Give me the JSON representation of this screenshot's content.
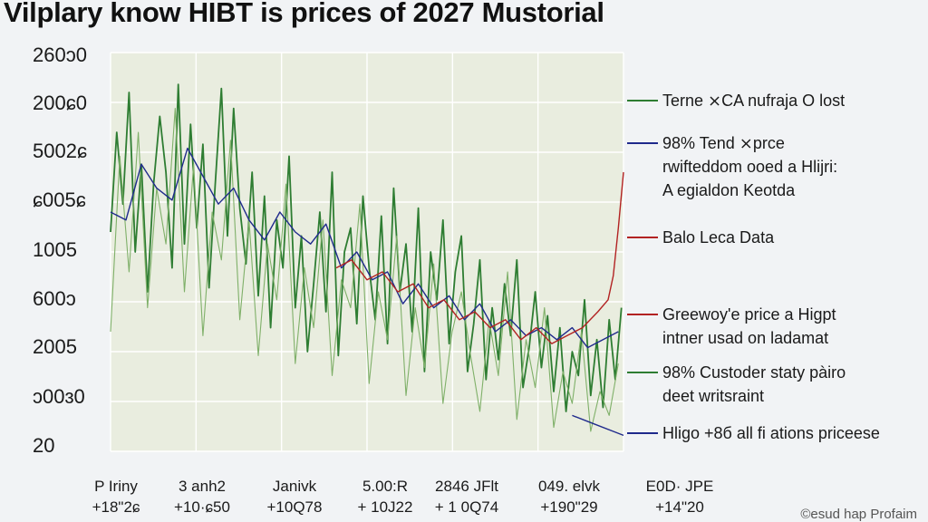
{
  "chart_data": {
    "type": "line",
    "title": "Vilplary know HIBT is prices of 2027 Mustorial",
    "watermark": "©esud hap Profaim",
    "y_ticks": [
      "260ɔ0",
      "200ɕ0",
      "5002ɕ",
      "ɕ005ɕ",
      "1005",
      "600ɔ",
      "2005",
      "ɔ00ɜ0",
      "20"
    ],
    "x_ticks": [
      {
        "line1": "P Iriny",
        "line2": "+18\"2ɕ"
      },
      {
        "line1": "3 anh2",
        "line2": "+10·ɕ50"
      },
      {
        "line1": "Janivk",
        "line2": "+10Q78"
      },
      {
        "line1": "5.00:R",
        "line2": "+ 10J22"
      },
      {
        "line1": "2846 JFlt",
        "line2": "+ 1 0Q74"
      },
      {
        "line1": "049. elvk",
        "line2": "+190\"29"
      },
      {
        "line1": "E0D· JPE",
        "line2": "+14\"20"
      }
    ],
    "ylim": [
      0,
      100
    ],
    "xlim": [
      0,
      100
    ],
    "grid": true,
    "legend_placement": "right",
    "legend": [
      {
        "lines": [
          "Terne ⨯CA nufraja O lost"
        ],
        "color": "#2e7d32"
      },
      {
        "lines": [
          "98% Tend ⨯prce",
          "rwifteddom ooed a Hlijri:",
          "A egialdon Keotda"
        ],
        "color": "#1f2a8c"
      },
      {
        "lines": [
          "Balo Leca Data"
        ],
        "color": "#b22222"
      },
      {
        "lines": [
          "Greewoy'e price a Higpt",
          "intner usad on ladamat"
        ],
        "color": "#b22222"
      },
      {
        "lines": [
          "98% Custoder staty pàiro",
          "deet writsraint"
        ],
        "color": "#2e7d32"
      },
      {
        "lines": [
          "Hligo +8б all fi ations priceese"
        ],
        "color": "#1f2a8c"
      }
    ],
    "series": [
      {
        "color": "#2e7d32",
        "x": [
          0,
          1.2,
          2.4,
          3.6,
          4.8,
          6,
          7.2,
          8.4,
          9.6,
          10.8,
          12,
          13.2,
          14.4,
          15.6,
          16.8,
          18,
          19.2,
          20.4,
          21.6,
          22.8,
          24,
          25.2,
          26.4,
          27.6,
          28.8,
          30,
          31.2,
          32.4,
          33.6,
          34.8,
          36,
          37.2,
          38.4,
          39.6,
          40.8,
          42,
          43.2,
          44.4,
          45.6,
          46.8,
          48,
          49.2,
          50.4,
          51.6,
          52.8,
          54,
          55.2,
          56.4,
          57.6,
          58.8,
          60,
          61.2,
          62.4,
          63.6,
          64.8,
          66,
          67.2,
          68.4,
          69.6,
          70.8,
          72,
          73.2,
          74.4,
          75.6,
          76.8,
          78,
          79.2,
          80.4,
          81.6,
          82.8,
          84,
          85.2,
          86.4,
          87.6,
          88.8,
          90,
          91.2,
          92.4,
          93.6,
          94.8,
          96,
          97.2,
          98.4,
          99.6
        ],
        "values": [
          55,
          80,
          62,
          90,
          50,
          72,
          40,
          67,
          84,
          70,
          46,
          92,
          52,
          82,
          56,
          77,
          41,
          67,
          91,
          54,
          86,
          61,
          47,
          70,
          39,
          64,
          31,
          58,
          46,
          74,
          36,
          54,
          25,
          42,
          60,
          35,
          70,
          24,
          50,
          56,
          32,
          64,
          46,
          33,
          59,
          27,
          66,
          40,
          52,
          30,
          61,
          20,
          50,
          38,
          58,
          27,
          45,
          54,
          20,
          32,
          48,
          18,
          36,
          23,
          42,
          29,
          48,
          16,
          26,
          40,
          21,
          34,
          15,
          31,
          10,
          25,
          19,
          38,
          14,
          28,
          11,
          33,
          18,
          36
        ]
      },
      {
        "color": "#7fb069",
        "x": [
          0,
          1.8,
          3.6,
          5.4,
          7.2,
          9,
          10.8,
          12.6,
          14.4,
          16.2,
          18,
          19.8,
          21.6,
          23.4,
          25.2,
          27,
          28.8,
          30.6,
          32.4,
          34.2,
          36,
          37.8,
          39.6,
          41.4,
          43.2,
          45,
          46.8,
          48.6,
          50.4,
          52.2,
          54,
          55.8,
          57.6,
          59.4,
          61.2,
          63,
          64.8,
          66.6,
          68.4,
          70.2,
          72,
          73.8,
          75.6,
          77.4,
          79.2,
          81,
          82.8,
          84.6,
          86.4,
          88.2,
          90,
          91.8,
          93.6,
          95.4,
          97.2,
          99
        ],
        "values": [
          30,
          74,
          45,
          80,
          36,
          66,
          52,
          86,
          40,
          72,
          29,
          60,
          48,
          78,
          33,
          58,
          24,
          52,
          38,
          67,
          22,
          46,
          31,
          58,
          19,
          43,
          36,
          62,
          17,
          40,
          28,
          54,
          14,
          36,
          21,
          47,
          12,
          30,
          40,
          24,
          10,
          33,
          19,
          45,
          8,
          28,
          16,
          36,
          6,
          20,
          12,
          30,
          5,
          15,
          9,
          22
        ]
      },
      {
        "color": "#1f2a8c",
        "x": [
          0,
          3,
          6,
          9,
          12,
          15,
          18,
          21,
          24,
          27,
          30,
          33,
          36,
          39,
          42,
          45,
          48,
          51,
          54,
          57,
          60,
          63,
          66,
          69,
          72,
          75,
          78,
          81,
          84,
          87,
          90,
          93,
          96,
          99
        ],
        "values": [
          60,
          58,
          72,
          66,
          63,
          76,
          69,
          62,
          66,
          58,
          53,
          60,
          55,
          52,
          57,
          46,
          50,
          43,
          45,
          37,
          42,
          36,
          39,
          33,
          37,
          30,
          33,
          29,
          31,
          28,
          31,
          26,
          28,
          30
        ]
      },
      {
        "color": "#b22222",
        "x": [
          44,
          47,
          50,
          53,
          56,
          59,
          62,
          65,
          68,
          71,
          74,
          77,
          80,
          83,
          86,
          89,
          92,
          95,
          97,
          98,
          99,
          100
        ],
        "values": [
          46,
          48,
          43,
          45,
          40,
          42,
          36,
          38,
          33,
          35,
          31,
          33,
          28,
          31,
          27,
          29,
          31,
          35,
          38,
          44,
          56,
          70
        ]
      },
      {
        "color": "#1f2a8c",
        "x": [
          90,
          94,
          98,
          100
        ],
        "values": [
          9,
          7,
          5,
          4
        ]
      }
    ]
  }
}
